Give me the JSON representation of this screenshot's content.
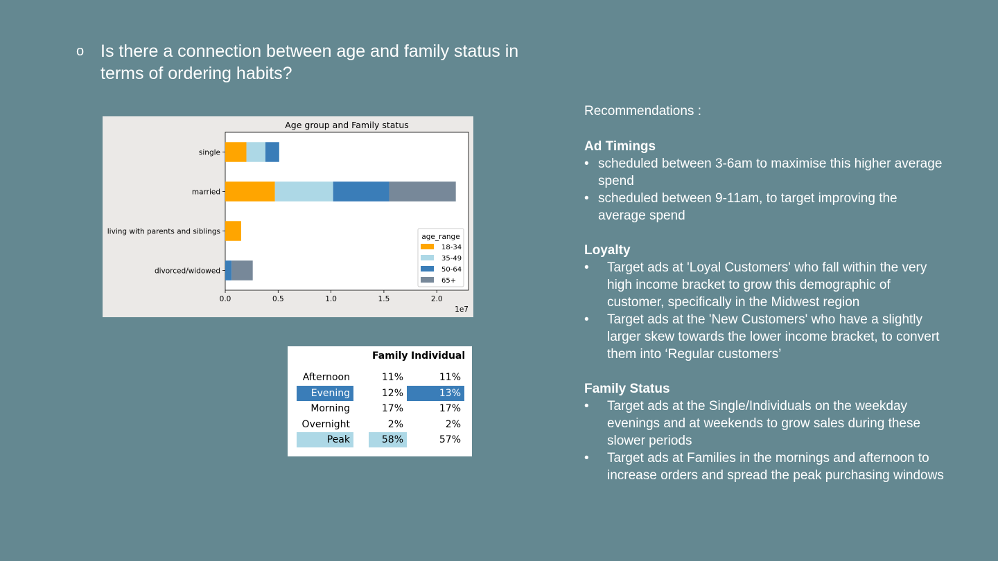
{
  "question": {
    "bullet": "o",
    "text": "Is there a connection between age and family status in terms of ordering habits?"
  },
  "chart_data": {
    "type": "bar",
    "orientation": "horizontal",
    "stacked": true,
    "title": "Age group and Family status",
    "categories": [
      "single",
      "married",
      "living with parents and siblings",
      "divorced/widowed"
    ],
    "series": [
      {
        "name": "18-34",
        "color": "#ffa500",
        "values": [
          2000000,
          4700000,
          1500000,
          0
        ]
      },
      {
        "name": "35-49",
        "color": "#add8e6",
        "values": [
          1800000,
          5500000,
          0,
          0
        ]
      },
      {
        "name": "50-64",
        "color": "#3a7db8",
        "values": [
          1300000,
          5300000,
          0,
          600000
        ]
      },
      {
        "name": "65+",
        "color": "#778899",
        "values": [
          0,
          6300000,
          0,
          2000000
        ]
      }
    ],
    "xlim": [
      0,
      23000000
    ],
    "xticks": [
      0,
      5000000,
      10000000,
      15000000,
      20000000
    ],
    "xtick_labels": [
      "0.0",
      "0.5",
      "1.0",
      "1.5",
      "2.0"
    ],
    "x_offset_label": "1e7",
    "legend_title": "age_range",
    "legend_position": "lower-right",
    "grid": false
  },
  "table": {
    "columns": [
      "Family",
      "Individual"
    ],
    "rows": [
      {
        "label": "Afternoon",
        "family": "11%",
        "individual": "11%",
        "label_hl": "",
        "family_hl": "",
        "individual_hl": ""
      },
      {
        "label": "Evening",
        "family": "12%",
        "individual": "13%",
        "label_hl": "dark",
        "family_hl": "",
        "individual_hl": "dark"
      },
      {
        "label": "Morning",
        "family": "17%",
        "individual": "17%",
        "label_hl": "",
        "family_hl": "",
        "individual_hl": ""
      },
      {
        "label": "Overnight",
        "family": "2%",
        "individual": "2%",
        "label_hl": "",
        "family_hl": "",
        "individual_hl": ""
      },
      {
        "label": "Peak",
        "family": "58%",
        "individual": "57%",
        "label_hl": "light",
        "family_hl": "light",
        "individual_hl": ""
      }
    ],
    "highlight_colors": {
      "dark": "#3a7db8",
      "light": "#add8e6"
    }
  },
  "recommendations": {
    "intro": "Recommendations :",
    "sections": [
      {
        "title": "Ad Timings",
        "bullets": [
          "scheduled between 3-6am to maximise this higher average spend",
          "scheduled between 9-11am, to target improving the average spend"
        ]
      },
      {
        "title": "Loyalty",
        "bullets": [
          "Target ads at 'Loyal Customers' who fall within the very high income bracket to grow this demographic of customer, specifically in the Midwest region",
          "Target ads at the 'New Customers' who have a slightly larger skew towards the lower income bracket, to convert them into ‘Regular customers’"
        ]
      },
      {
        "title": "Family Status",
        "bullets": [
          "Target ads at the Single/Individuals on the weekday evenings and at weekends to grow sales during these slower periods",
          "Target ads at Families in the mornings and afternoon to increase orders and spread the peak purchasing windows"
        ]
      }
    ]
  },
  "colors": {
    "background": "#648891",
    "chart_background": "#ebe9e7",
    "text": "#ffffff"
  }
}
